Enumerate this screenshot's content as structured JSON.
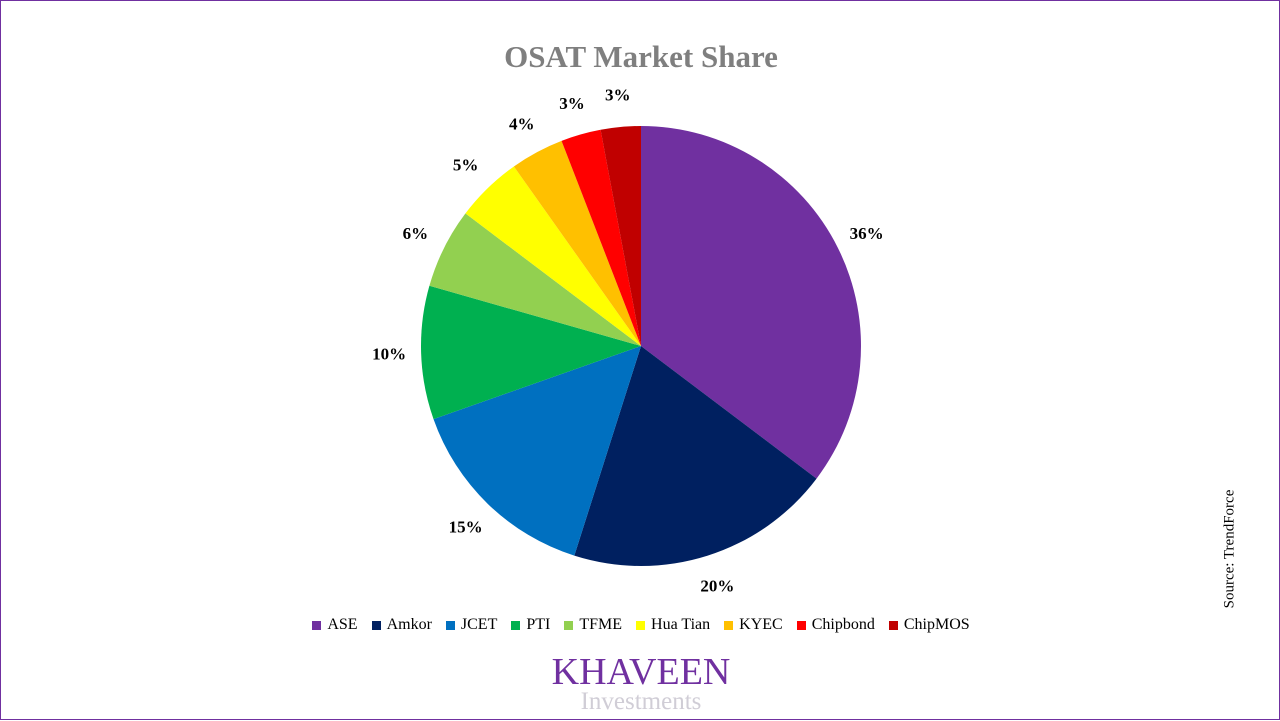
{
  "chart_data": {
    "type": "pie",
    "title": "OSAT Market Share",
    "categories": [
      "ASE",
      "Amkor",
      "JCET",
      "PTI",
      "TFME",
      "Hua Tian",
      "KYEC",
      "Chipbond",
      "ChipMOS"
    ],
    "values": [
      36,
      20,
      15,
      10,
      6,
      5,
      4,
      3,
      3
    ],
    "data_labels": [
      "36%",
      "20%",
      "15%",
      "10%",
      "6%",
      "5%",
      "4%",
      "3%",
      "3%"
    ],
    "colors": [
      "#7030a0",
      "#002060",
      "#0070c0",
      "#00b050",
      "#92d050",
      "#ffff00",
      "#ffc000",
      "#ff0000",
      "#c00000"
    ],
    "legend_placement": "bottom",
    "start_angle": "12 o'clock, clockwise"
  },
  "source": "Source: TrendForce",
  "logo": {
    "main": "KHAVEEN",
    "sub": "Investments"
  }
}
